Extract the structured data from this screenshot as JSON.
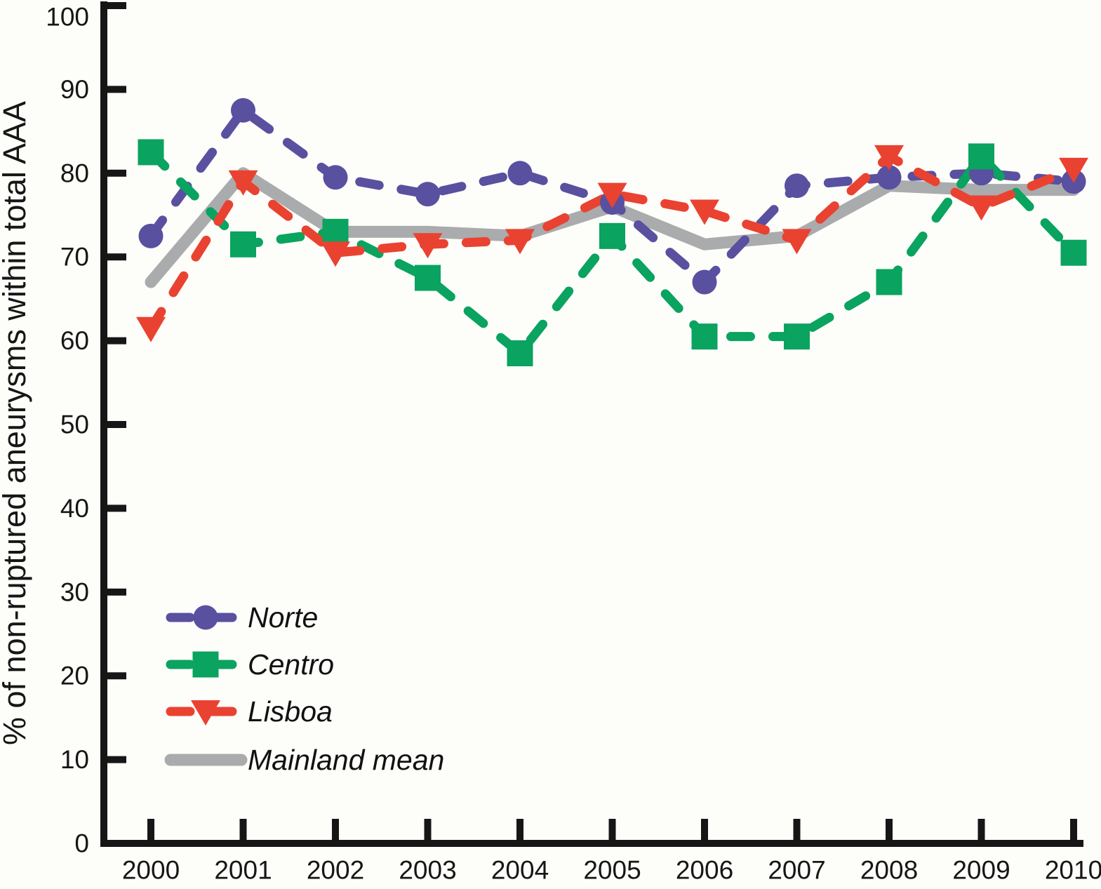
{
  "figure": {
    "background": "#fdfdfa",
    "axis_color": "#161616"
  },
  "chart_data": {
    "type": "line",
    "title": "",
    "xlabel": "",
    "ylabel": "% of non-ruptured aneurysms within total AAA",
    "x": [
      2000,
      2001,
      2002,
      2003,
      2004,
      2005,
      2006,
      2007,
      2008,
      2009,
      2010
    ],
    "x_tick_labels": [
      "2000",
      "2001",
      "2002",
      "2003",
      "2004",
      "2005",
      "2006",
      "2007",
      "2008",
      "2009",
      "2010"
    ],
    "y_ticks": [
      0,
      10,
      20,
      30,
      40,
      50,
      60,
      70,
      80,
      90,
      100
    ],
    "ylim": [
      0,
      100
    ],
    "grid": false,
    "legend_position": "inside-bottom-left",
    "series": [
      {
        "name": "Norte",
        "color": "#5950a0",
        "marker": "circle",
        "line_style": "dashed",
        "values": [
          72.5,
          87.5,
          79.5,
          77.5,
          80,
          76.5,
          67,
          78.5,
          79.5,
          80,
          79
        ]
      },
      {
        "name": "Centro",
        "color": "#0aa35f",
        "marker": "square",
        "line_style": "dashed",
        "values": [
          82.5,
          71.5,
          73,
          67.5,
          58.5,
          72.5,
          60.5,
          60.5,
          67,
          82,
          70.5
        ]
      },
      {
        "name": "Lisboa",
        "color": "#ea4231",
        "marker": "triangle-down",
        "line_style": "dashed",
        "values": [
          61.5,
          79,
          70.5,
          71.5,
          72,
          77.5,
          75.5,
          72,
          82,
          76,
          80.5
        ]
      },
      {
        "name": "Mainland mean",
        "color": "#aaabad",
        "marker": "none",
        "line_style": "solid",
        "values": [
          67,
          80,
          73,
          73,
          72.5,
          76,
          71.5,
          72.5,
          78.5,
          78,
          78
        ]
      }
    ]
  }
}
